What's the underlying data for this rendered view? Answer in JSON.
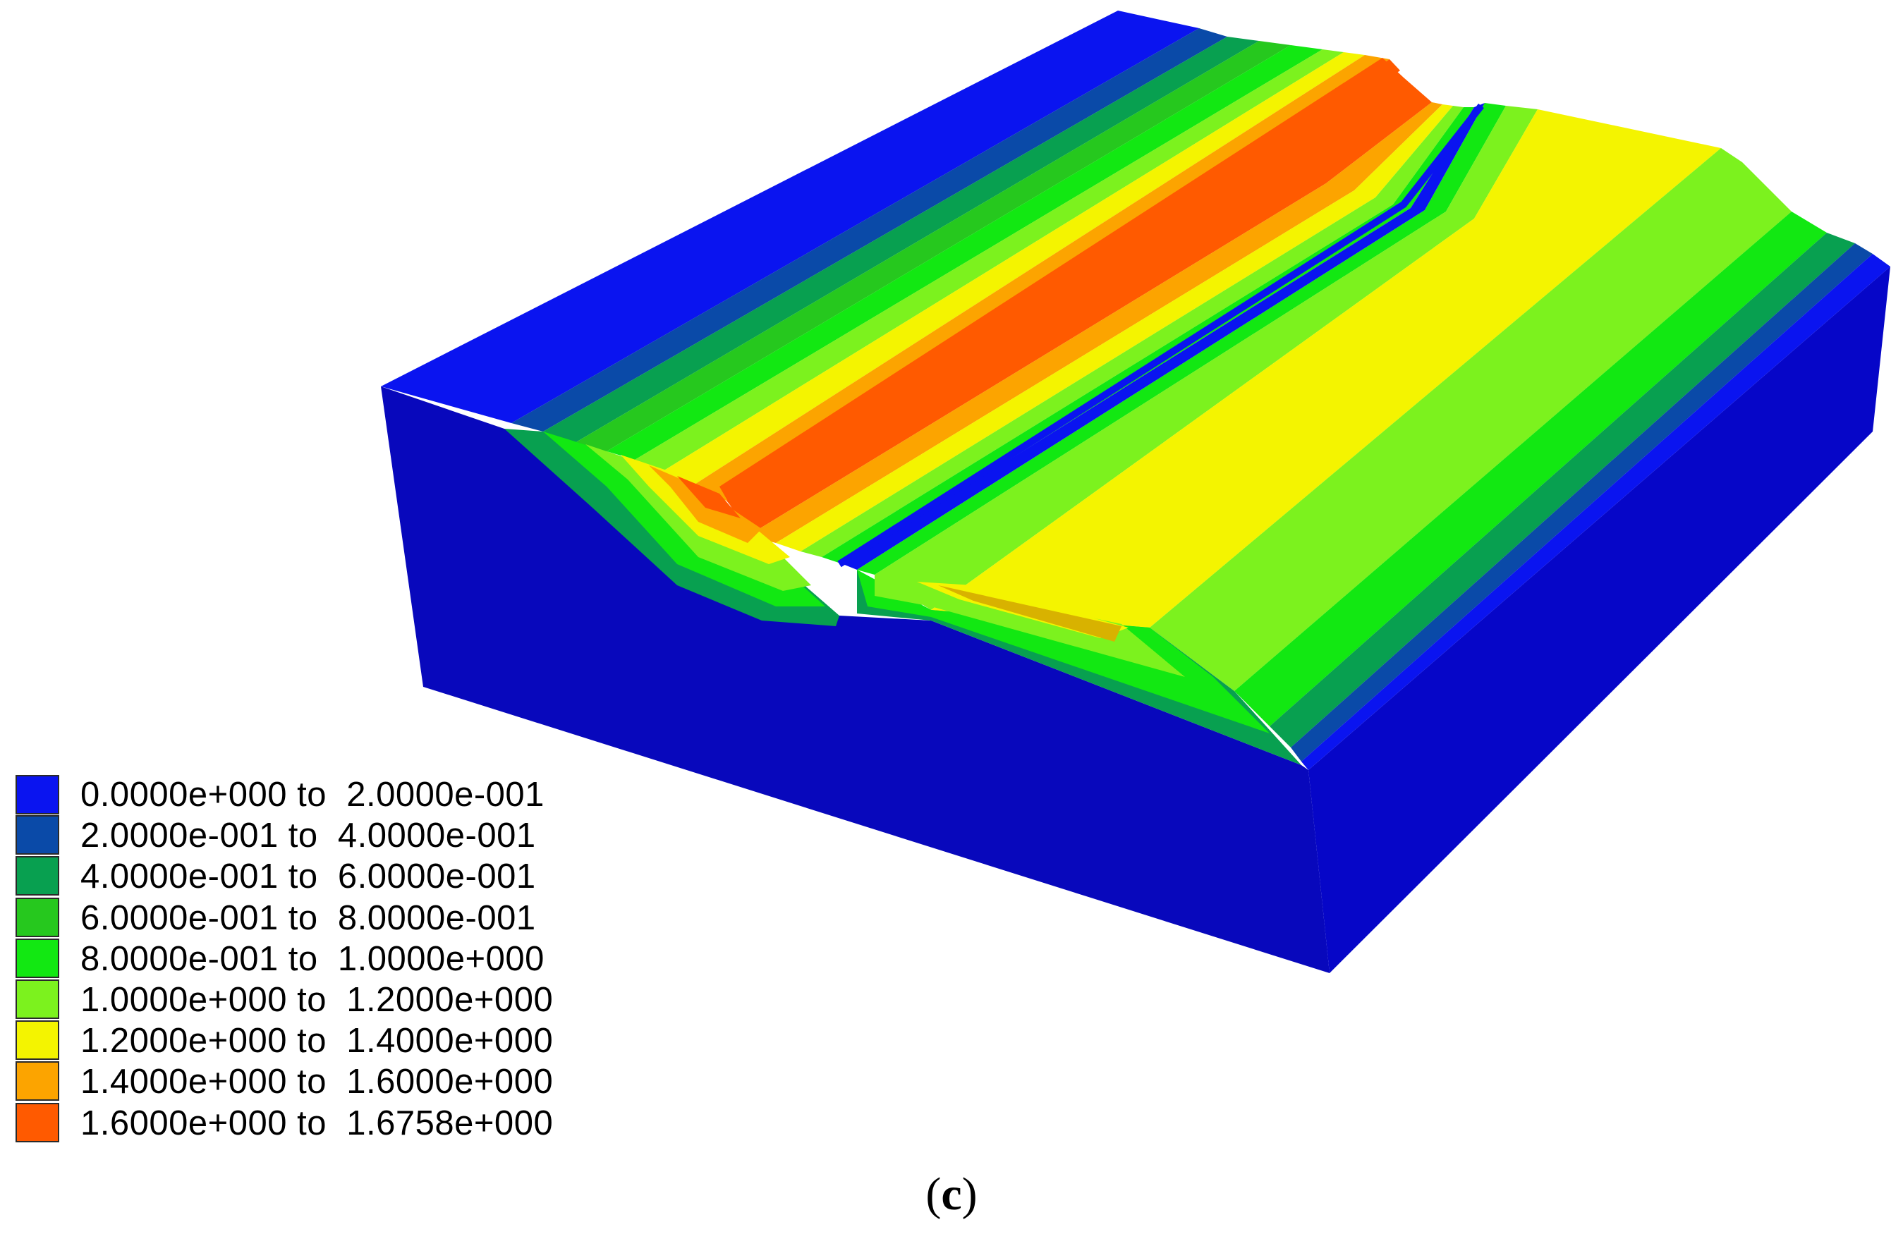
{
  "legend": {
    "entries": [
      {
        "label": "0.0000e+000 to  2.0000e-001",
        "color": "#0a14f0"
      },
      {
        "label": "2.0000e-001 to  4.0000e-001",
        "color": "#0a4aa8"
      },
      {
        "label": "4.0000e-001 to  6.0000e-001",
        "color": "#08a050"
      },
      {
        "label": "6.0000e-001 to  8.0000e-001",
        "color": "#26c81e"
      },
      {
        "label": "8.0000e-001 to  1.0000e+000",
        "color": "#12e812"
      },
      {
        "label": "1.0000e+000 to  1.2000e+000",
        "color": "#7cf21e"
      },
      {
        "label": "1.2000e+000 to  1.4000e+000",
        "color": "#f4f400"
      },
      {
        "label": "1.4000e+000 to  1.6000e+000",
        "color": "#fca400"
      },
      {
        "label": "1.6000e+000 to  1.6758e+000",
        "color": "#ff5a00"
      }
    ]
  },
  "caption": {
    "open": "(",
    "letter": "c",
    "close": ")"
  },
  "colors": {
    "block_top": "#0a14f0",
    "block_side": "#0808c4",
    "block_front": "#0808b8"
  }
}
